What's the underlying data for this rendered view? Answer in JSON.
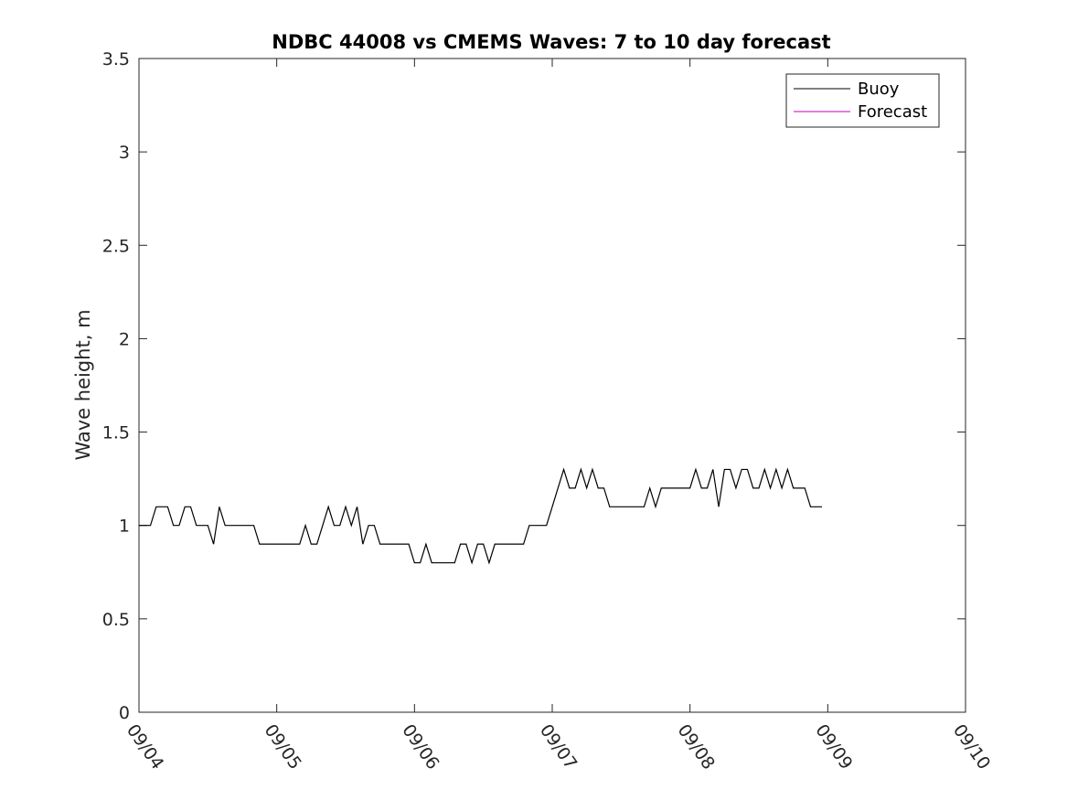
{
  "chart_data": {
    "type": "line",
    "title": "NDBC 44008 vs CMEMS Waves: 7 to 10 day forecast",
    "xlabel": "",
    "ylabel": "Wave height, m",
    "xlim": [
      "09/04",
      "09/10"
    ],
    "ylim": [
      0,
      3.5
    ],
    "x_ticks": [
      "09/04",
      "09/05",
      "09/06",
      "09/07",
      "09/08",
      "09/09",
      "09/10"
    ],
    "y_ticks": [
      "0",
      "0.5",
      "1",
      "1.5",
      "2",
      "2.5",
      "3",
      "3.5"
    ],
    "grid": false,
    "legend_position": "top-right",
    "series": [
      {
        "name": "Buoy",
        "color": "#000000",
        "points": [
          [
            "09/04 00:00",
            1.0
          ],
          [
            "09/04 01:00",
            1.0
          ],
          [
            "09/04 02:00",
            1.0
          ],
          [
            "09/04 03:00",
            1.1
          ],
          [
            "09/04 04:00",
            1.1
          ],
          [
            "09/04 05:00",
            1.1
          ],
          [
            "09/04 06:00",
            1.0
          ],
          [
            "09/04 07:00",
            1.0
          ],
          [
            "09/04 08:00",
            1.1
          ],
          [
            "09/04 09:00",
            1.1
          ],
          [
            "09/04 10:00",
            1.0
          ],
          [
            "09/04 11:00",
            1.0
          ],
          [
            "09/04 12:00",
            1.0
          ],
          [
            "09/04 13:00",
            0.9
          ],
          [
            "09/04 14:00",
            1.1
          ],
          [
            "09/04 15:00",
            1.0
          ],
          [
            "09/04 16:00",
            1.0
          ],
          [
            "09/04 17:00",
            1.0
          ],
          [
            "09/04 18:00",
            1.0
          ],
          [
            "09/04 19:00",
            1.0
          ],
          [
            "09/04 20:00",
            1.0
          ],
          [
            "09/04 21:00",
            0.9
          ],
          [
            "09/04 22:00",
            0.9
          ],
          [
            "09/04 23:00",
            0.9
          ],
          [
            "09/05 00:00",
            0.9
          ],
          [
            "09/05 01:00",
            0.9
          ],
          [
            "09/05 02:00",
            0.9
          ],
          [
            "09/05 03:00",
            0.9
          ],
          [
            "09/05 04:00",
            0.9
          ],
          [
            "09/05 05:00",
            1.0
          ],
          [
            "09/05 06:00",
            0.9
          ],
          [
            "09/05 07:00",
            0.9
          ],
          [
            "09/05 08:00",
            1.0
          ],
          [
            "09/05 09:00",
            1.1
          ],
          [
            "09/05 10:00",
            1.0
          ],
          [
            "09/05 11:00",
            1.0
          ],
          [
            "09/05 12:00",
            1.1
          ],
          [
            "09/05 13:00",
            1.0
          ],
          [
            "09/05 14:00",
            1.1
          ],
          [
            "09/05 15:00",
            0.9
          ],
          [
            "09/05 16:00",
            1.0
          ],
          [
            "09/05 17:00",
            1.0
          ],
          [
            "09/05 18:00",
            0.9
          ],
          [
            "09/05 19:00",
            0.9
          ],
          [
            "09/05 20:00",
            0.9
          ],
          [
            "09/05 21:00",
            0.9
          ],
          [
            "09/05 22:00",
            0.9
          ],
          [
            "09/05 23:00",
            0.9
          ],
          [
            "09/06 00:00",
            0.8
          ],
          [
            "09/06 01:00",
            0.8
          ],
          [
            "09/06 02:00",
            0.9
          ],
          [
            "09/06 03:00",
            0.8
          ],
          [
            "09/06 04:00",
            0.8
          ],
          [
            "09/06 05:00",
            0.8
          ],
          [
            "09/06 06:00",
            0.8
          ],
          [
            "09/06 07:00",
            0.8
          ],
          [
            "09/06 08:00",
            0.9
          ],
          [
            "09/06 09:00",
            0.9
          ],
          [
            "09/06 10:00",
            0.8
          ],
          [
            "09/06 11:00",
            0.9
          ],
          [
            "09/06 12:00",
            0.9
          ],
          [
            "09/06 13:00",
            0.8
          ],
          [
            "09/06 14:00",
            0.9
          ],
          [
            "09/06 15:00",
            0.9
          ],
          [
            "09/06 16:00",
            0.9
          ],
          [
            "09/06 17:00",
            0.9
          ],
          [
            "09/06 18:00",
            0.9
          ],
          [
            "09/06 19:00",
            0.9
          ],
          [
            "09/06 20:00",
            1.0
          ],
          [
            "09/06 21:00",
            1.0
          ],
          [
            "09/06 22:00",
            1.0
          ],
          [
            "09/06 23:00",
            1.0
          ],
          [
            "09/07 00:00",
            1.1
          ],
          [
            "09/07 01:00",
            1.2
          ],
          [
            "09/07 02:00",
            1.3
          ],
          [
            "09/07 03:00",
            1.2
          ],
          [
            "09/07 04:00",
            1.2
          ],
          [
            "09/07 05:00",
            1.3
          ],
          [
            "09/07 06:00",
            1.2
          ],
          [
            "09/07 07:00",
            1.3
          ],
          [
            "09/07 08:00",
            1.2
          ],
          [
            "09/07 09:00",
            1.2
          ],
          [
            "09/07 10:00",
            1.1
          ],
          [
            "09/07 11:00",
            1.1
          ],
          [
            "09/07 12:00",
            1.1
          ],
          [
            "09/07 13:00",
            1.1
          ],
          [
            "09/07 14:00",
            1.1
          ],
          [
            "09/07 15:00",
            1.1
          ],
          [
            "09/07 16:00",
            1.1
          ],
          [
            "09/07 17:00",
            1.2
          ],
          [
            "09/07 18:00",
            1.1
          ],
          [
            "09/07 19:00",
            1.2
          ],
          [
            "09/07 20:00",
            1.2
          ],
          [
            "09/07 21:00",
            1.2
          ],
          [
            "09/07 22:00",
            1.2
          ],
          [
            "09/07 23:00",
            1.2
          ],
          [
            "09/08 00:00",
            1.2
          ],
          [
            "09/08 01:00",
            1.3
          ],
          [
            "09/08 02:00",
            1.2
          ],
          [
            "09/08 03:00",
            1.2
          ],
          [
            "09/08 04:00",
            1.3
          ],
          [
            "09/08 05:00",
            1.1
          ],
          [
            "09/08 06:00",
            1.3
          ],
          [
            "09/08 07:00",
            1.3
          ],
          [
            "09/08 08:00",
            1.2
          ],
          [
            "09/08 09:00",
            1.3
          ],
          [
            "09/08 10:00",
            1.3
          ],
          [
            "09/08 11:00",
            1.2
          ],
          [
            "09/08 12:00",
            1.2
          ],
          [
            "09/08 13:00",
            1.3
          ],
          [
            "09/08 14:00",
            1.2
          ],
          [
            "09/08 15:00",
            1.3
          ],
          [
            "09/08 16:00",
            1.2
          ],
          [
            "09/08 17:00",
            1.3
          ],
          [
            "09/08 18:00",
            1.2
          ],
          [
            "09/08 19:00",
            1.2
          ],
          [
            "09/08 20:00",
            1.2
          ],
          [
            "09/08 21:00",
            1.1
          ],
          [
            "09/08 22:00",
            1.1
          ],
          [
            "09/08 23:00",
            1.1
          ]
        ]
      },
      {
        "name": "Forecast",
        "color": "#c000c0",
        "points": []
      }
    ]
  }
}
